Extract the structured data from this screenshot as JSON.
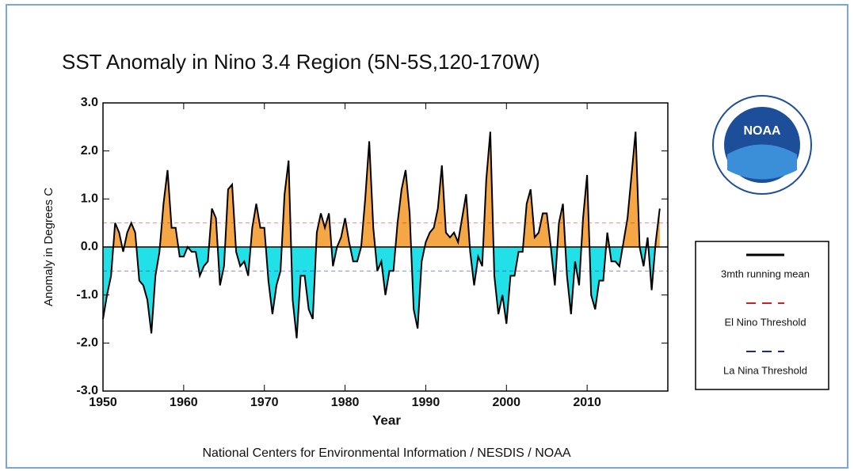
{
  "chart_data": {
    "type": "line",
    "title": "SST Anomaly in Nino 3.4 Region (5N-5S,120-170W)",
    "y_label": "Anomaly in Degrees C",
    "x_label": "Year",
    "credit": "National Centers for Environmental Information / NESDIS / NOAA",
    "logo_text": "NOAA",
    "xlim": [
      1950,
      2020
    ],
    "xticks": [
      1950,
      1960,
      1970,
      1980,
      1990,
      2000,
      2010
    ],
    "ylim": [
      -3,
      3
    ],
    "yticks": [
      {
        "value": -3,
        "label": "-3.0"
      },
      {
        "value": -2,
        "label": "-2.0"
      },
      {
        "value": -1,
        "label": "-1.0"
      },
      {
        "value": 0,
        "label": "0.0"
      },
      {
        "value": 1,
        "label": "1.0"
      },
      {
        "value": 2,
        "label": "2.0"
      },
      {
        "value": 3,
        "label": "3.0"
      }
    ],
    "positive_color": "#f5a745",
    "negative_color": "#22e0e8",
    "x": [
      1950.0,
      1950.5,
      1951.0,
      1951.5,
      1952.0,
      1952.5,
      1953.0,
      1953.5,
      1954.0,
      1954.5,
      1955.0,
      1955.5,
      1956.0,
      1956.5,
      1957.0,
      1957.5,
      1958.0,
      1958.5,
      1959.0,
      1959.5,
      1960.0,
      1960.5,
      1961.0,
      1961.5,
      1962.0,
      1962.5,
      1963.0,
      1963.5,
      1964.0,
      1964.5,
      1965.0,
      1965.5,
      1966.0,
      1966.5,
      1967.0,
      1967.5,
      1968.0,
      1968.5,
      1969.0,
      1969.5,
      1970.0,
      1970.5,
      1971.0,
      1971.5,
      1972.0,
      1972.5,
      1973.0,
      1973.5,
      1974.0,
      1974.5,
      1975.0,
      1975.5,
      1976.0,
      1976.5,
      1977.0,
      1977.5,
      1978.0,
      1978.5,
      1979.0,
      1979.5,
      1980.0,
      1980.5,
      1981.0,
      1981.5,
      1982.0,
      1982.5,
      1983.0,
      1983.5,
      1984.0,
      1984.5,
      1985.0,
      1985.5,
      1986.0,
      1986.5,
      1987.0,
      1987.5,
      1988.0,
      1988.5,
      1989.0,
      1989.5,
      1990.0,
      1990.5,
      1991.0,
      1991.5,
      1992.0,
      1992.5,
      1993.0,
      1993.5,
      1994.0,
      1994.5,
      1995.0,
      1995.5,
      1996.0,
      1996.5,
      1997.0,
      1997.5,
      1998.0,
      1998.5,
      1999.0,
      1999.5,
      2000.0,
      2000.5,
      2001.0,
      2001.5,
      2002.0,
      2002.5,
      2003.0,
      2003.5,
      2004.0,
      2004.5,
      2005.0,
      2005.5,
      2006.0,
      2006.5,
      2007.0,
      2007.5,
      2008.0,
      2008.5,
      2009.0,
      2009.5,
      2010.0,
      2010.5,
      2011.0,
      2011.5,
      2012.0,
      2012.5,
      2013.0,
      2013.5,
      2014.0,
      2014.5,
      2015.0,
      2015.5,
      2016.0,
      2016.5,
      2017.0,
      2017.5,
      2018.0,
      2018.5,
      2019.0
    ],
    "series": [
      {
        "name": "3mth running mean",
        "color": "#000000",
        "values": [
          -1.5,
          -1.0,
          -0.6,
          0.5,
          0.3,
          -0.1,
          0.3,
          0.5,
          0.3,
          -0.7,
          -0.8,
          -1.1,
          -1.8,
          -0.6,
          -0.1,
          0.9,
          1.6,
          0.4,
          0.4,
          -0.2,
          -0.2,
          0.0,
          -0.1,
          -0.1,
          -0.6,
          -0.4,
          -0.3,
          0.8,
          0.6,
          -0.8,
          -0.4,
          1.2,
          1.3,
          -0.1,
          -0.4,
          -0.3,
          -0.6,
          0.4,
          0.9,
          0.4,
          0.4,
          -0.7,
          -1.4,
          -0.8,
          -0.5,
          1.1,
          1.8,
          -1.1,
          -1.9,
          -0.6,
          -0.6,
          -1.3,
          -1.5,
          0.3,
          0.7,
          0.4,
          0.7,
          -0.4,
          0.0,
          0.2,
          0.6,
          0.1,
          -0.3,
          -0.3,
          0.0,
          1.0,
          2.2,
          0.4,
          -0.5,
          -0.3,
          -1.0,
          -0.5,
          -0.5,
          0.5,
          1.2,
          1.6,
          0.7,
          -1.3,
          -1.7,
          -0.3,
          0.1,
          0.3,
          0.4,
          0.8,
          1.7,
          0.3,
          0.2,
          0.3,
          0.1,
          0.6,
          1.1,
          -0.1,
          -0.8,
          -0.2,
          -0.4,
          1.4,
          2.4,
          -0.6,
          -1.4,
          -1.0,
          -1.6,
          -0.6,
          -0.6,
          -0.1,
          -0.1,
          0.9,
          1.2,
          0.2,
          0.3,
          0.7,
          0.7,
          0.0,
          -0.8,
          0.5,
          0.9,
          -0.6,
          -1.4,
          -0.3,
          -0.8,
          0.6,
          1.5,
          -1.0,
          -1.3,
          -0.7,
          -0.7,
          0.3,
          -0.3,
          -0.3,
          -0.4,
          0.1,
          0.6,
          1.5,
          2.4,
          0.0,
          -0.4,
          0.2,
          -0.9,
          0.1,
          0.8
        ]
      }
    ],
    "thresholds": [
      {
        "name": "El Nino Threshold",
        "value": 0.5,
        "color": "#cc2222"
      },
      {
        "name": "La Nina Threshold",
        "value": -0.5,
        "color": "#1a2a9a"
      }
    ]
  }
}
